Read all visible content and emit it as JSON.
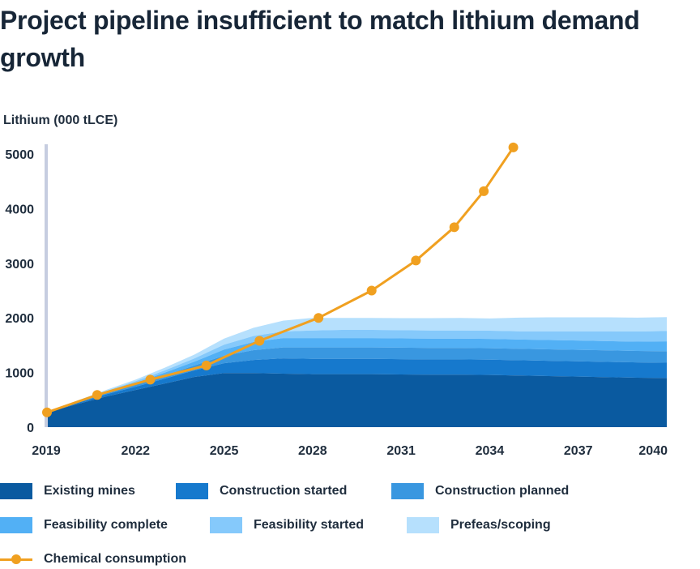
{
  "title": "Project pipeline insufficient to match lithium demand growth",
  "chart_data": {
    "type": "area",
    "ylabel": "Lithium (000 tLCE)",
    "ylim": [
      0,
      5200
    ],
    "xlim": [
      2019,
      2040
    ],
    "y_ticks": [
      "0",
      "1000",
      "2000",
      "3000",
      "4000",
      "5000"
    ],
    "x_ticks": [
      "2019",
      "2022",
      "2025",
      "2028",
      "2031",
      "2034",
      "2037",
      "2040"
    ],
    "x": [
      2019,
      2020,
      2021,
      2022,
      2023,
      2024,
      2025,
      2026,
      2027,
      2028,
      2029,
      2030,
      2031,
      2032,
      2033,
      2034,
      2035,
      2036,
      2037,
      2038,
      2039,
      2040
    ],
    "stacked": true,
    "series": [
      {
        "name": "Existing mines",
        "color": "#0a5aa0",
        "values": [
          270,
          420,
          560,
          680,
          800,
          920,
          990,
          990,
          980,
          970,
          970,
          970,
          965,
          960,
          960,
          955,
          945,
          935,
          925,
          915,
          905,
          900
        ]
      },
      {
        "name": "Construction started",
        "color": "#1679cd",
        "values": [
          0,
          20,
          40,
          60,
          90,
          120,
          180,
          240,
          280,
          280,
          280,
          280,
          280,
          280,
          280,
          280,
          280,
          280,
          280,
          280,
          280,
          280
        ]
      },
      {
        "name": "Construction planned",
        "color": "#3997e0",
        "values": [
          0,
          10,
          20,
          40,
          60,
          90,
          140,
          180,
          200,
          210,
          210,
          210,
          210,
          210,
          210,
          210,
          210,
          210,
          210,
          210,
          210,
          210
        ]
      },
      {
        "name": "Feasibility complete",
        "color": "#52b0f5",
        "values": [
          0,
          10,
          20,
          30,
          50,
          70,
          110,
          150,
          170,
          170,
          170,
          170,
          170,
          170,
          170,
          170,
          170,
          170,
          170,
          170,
          170,
          180
        ]
      },
      {
        "name": "Feasibility started",
        "color": "#85c9fb",
        "values": [
          0,
          10,
          20,
          30,
          40,
          60,
          90,
          110,
          120,
          140,
          150,
          150,
          150,
          150,
          150,
          150,
          150,
          160,
          170,
          180,
          185,
          190
        ]
      },
      {
        "name": "Prefeas/scoping",
        "color": "#b6e0fd",
        "values": [
          0,
          10,
          20,
          30,
          50,
          70,
          110,
          150,
          200,
          230,
          220,
          220,
          220,
          225,
          230,
          225,
          250,
          255,
          255,
          255,
          255,
          255
        ]
      }
    ],
    "line_series": {
      "name": "Chemical consumption",
      "color": "#f0a020",
      "x": [
        2019,
        2020.7,
        2022.5,
        2024.4,
        2026.2,
        2028.2,
        2030.0,
        2031.5,
        2032.8,
        2033.8,
        2034.8
      ],
      "values": [
        270,
        590,
        870,
        1130,
        1580,
        2000,
        2500,
        3050,
        3660,
        4320,
        5120
      ]
    },
    "legend": "bottom"
  }
}
